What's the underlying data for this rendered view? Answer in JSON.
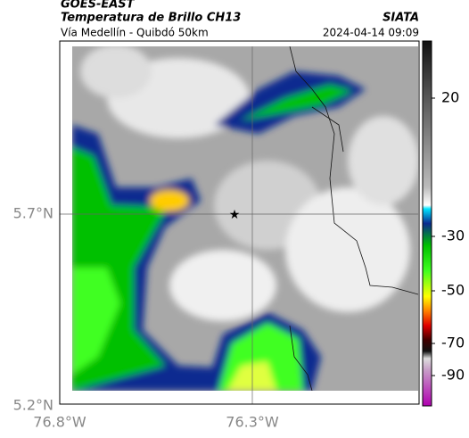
{
  "header": {
    "source": "GOES-EAST",
    "title": "Temperatura de Brillo CH13",
    "org": "SIATA",
    "route": "Vía Medellín - Quibdó 50km",
    "datetime": "2024-04-14 09:09"
  },
  "map": {
    "lat_labels": [
      "5.7°N",
      "5.2°N"
    ],
    "lon_labels": [
      "76.8°W",
      "76.3°W"
    ]
  },
  "colorbar": {
    "ticks": [
      "20",
      "-30",
      "-50",
      "-70",
      "-90"
    ]
  }
}
